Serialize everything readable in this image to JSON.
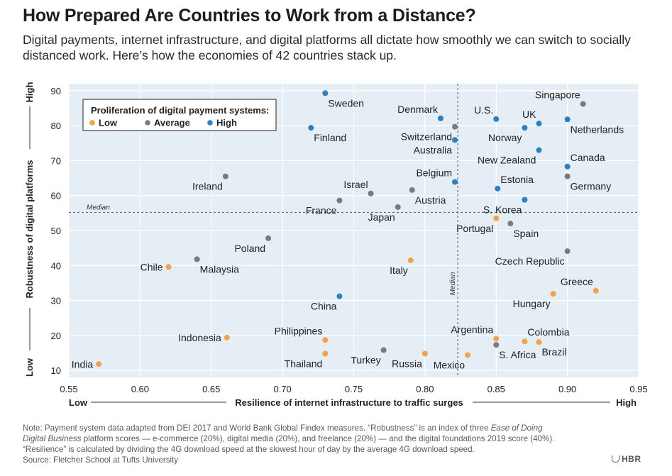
{
  "title": "How Prepared Are Countries to Work from a Distance?",
  "subtitle": "Digital payments, internet infrastructure, and digital platforms all dictate how smoothly we can switch to socially distanced work. Here’s how the economies of 42 countries stack up.",
  "note": {
    "line1_a": "Note: Payment system data adapted from DEI 2017 and World Bank Global Findex measures. “Robustness” is an index of three ",
    "line1_em": "Ease of Doing",
    "line2_em": "Digital Business",
    "line2_b": " platform scores — e-commerce (20%), digital media (20%), and freelance (20%) — and the digital foundations 2019 score (40%).",
    "line3": "“Resilience” is calculated by dividing the 4G download speed at the slowest hour of day by the average 4G download speed."
  },
  "source": "Source: Fletcher School at Tufts University",
  "brand": "HBR",
  "chart_data": {
    "type": "scatter",
    "xlabel": "Resilience of internet infrastructure to traffic surges",
    "ylabel": "Robustness of digital platforms",
    "x_low": "Low",
    "x_high": "High",
    "y_low": "Low",
    "y_high": "High",
    "xlim": [
      0.55,
      0.95
    ],
    "ylim": [
      8,
      92
    ],
    "xticks": [
      0.55,
      0.6,
      0.65,
      0.7,
      0.75,
      0.8,
      0.85,
      0.9,
      0.95
    ],
    "xtick_labels": [
      "0.55",
      "0.60",
      "0.65",
      "0.70",
      "0.75",
      "0.80",
      "0.85",
      "0.90",
      "0.95"
    ],
    "yticks": [
      10,
      20,
      30,
      40,
      50,
      60,
      70,
      80,
      90
    ],
    "ytick_labels": [
      "10",
      "20",
      "30",
      "40",
      "50",
      "60",
      "70",
      "80",
      "90"
    ],
    "grid": true,
    "median_x": 0.823,
    "median_y": 55.2,
    "median_label": "Median",
    "legend": {
      "title": "Proliferation of digital payment systems:",
      "placement": "top-left",
      "items": [
        {
          "key": "low",
          "label": "Low"
        },
        {
          "key": "average",
          "label": "Average"
        },
        {
          "key": "high",
          "label": "High"
        }
      ]
    },
    "colors": {
      "low": "#f5a04a",
      "average": "#7a7a7a",
      "high": "#2c7fc0"
    },
    "points": [
      {
        "name": "India",
        "x": 0.571,
        "y": 11.8,
        "cat": "low",
        "pos": "left"
      },
      {
        "name": "Chile",
        "x": 0.62,
        "y": 39.6,
        "cat": "low",
        "pos": "left"
      },
      {
        "name": "Indonesia",
        "x": 0.661,
        "y": 19.4,
        "cat": "low",
        "pos": "left"
      },
      {
        "name": "Philippines",
        "x": 0.73,
        "y": 18.7,
        "cat": "low",
        "pos": "above-left"
      },
      {
        "name": "Thailand",
        "x": 0.73,
        "y": 14.8,
        "cat": "low",
        "pos": "below-left"
      },
      {
        "name": "Italy",
        "x": 0.79,
        "y": 41.5,
        "cat": "low",
        "pos": "below-left"
      },
      {
        "name": "Russia",
        "x": 0.8,
        "y": 14.8,
        "cat": "low",
        "pos": "below-left"
      },
      {
        "name": "Mexico",
        "x": 0.83,
        "y": 14.4,
        "cat": "low",
        "pos": "below-left"
      },
      {
        "name": "Portugal",
        "x": 0.85,
        "y": 53.5,
        "cat": "low",
        "pos": "below-left"
      },
      {
        "name": "Argentina",
        "x": 0.85,
        "y": 19.1,
        "cat": "low",
        "pos": "above-left"
      },
      {
        "name": "Colombia",
        "x": 0.87,
        "y": 18.3,
        "cat": "low",
        "pos": "above-right"
      },
      {
        "name": "Brazil",
        "x": 0.88,
        "y": 18.1,
        "cat": "low",
        "pos": "below-right"
      },
      {
        "name": "Hungary",
        "x": 0.89,
        "y": 31.9,
        "cat": "low",
        "pos": "below-left"
      },
      {
        "name": "Greece",
        "x": 0.92,
        "y": 32.8,
        "cat": "low",
        "pos": "above-left"
      },
      {
        "name": "Ireland",
        "x": 0.66,
        "y": 65.5,
        "cat": "average",
        "pos": "below-left"
      },
      {
        "name": "Malaysia",
        "x": 0.64,
        "y": 41.8,
        "cat": "average",
        "pos": "below-right"
      },
      {
        "name": "Poland",
        "x": 0.69,
        "y": 47.8,
        "cat": "average",
        "pos": "below-left"
      },
      {
        "name": "France",
        "x": 0.74,
        "y": 58.6,
        "cat": "average",
        "pos": "below-left"
      },
      {
        "name": "Israel",
        "x": 0.762,
        "y": 60.6,
        "cat": "average",
        "pos": "above-left"
      },
      {
        "name": "Austria",
        "x": 0.791,
        "y": 61.6,
        "cat": "average",
        "pos": "below-right"
      },
      {
        "name": "Japan",
        "x": 0.781,
        "y": 56.7,
        "cat": "average",
        "pos": "below-left"
      },
      {
        "name": "Turkey",
        "x": 0.771,
        "y": 15.8,
        "cat": "average",
        "pos": "below-left"
      },
      {
        "name": "Switzerland",
        "x": 0.821,
        "y": 79.7,
        "cat": "average",
        "pos": "below-left"
      },
      {
        "name": "Spain",
        "x": 0.86,
        "y": 52.0,
        "cat": "average",
        "pos": "below-right"
      },
      {
        "name": "S. Africa",
        "x": 0.85,
        "y": 17.3,
        "cat": "average",
        "pos": "below-right"
      },
      {
        "name": "Czech Republic",
        "x": 0.9,
        "y": 44.1,
        "cat": "average",
        "pos": "below-left"
      },
      {
        "name": "Singapore",
        "x": 0.911,
        "y": 86.2,
        "cat": "average",
        "pos": "above-left"
      },
      {
        "name": "Germany",
        "x": 0.9,
        "y": 65.5,
        "cat": "average",
        "pos": "below-right"
      },
      {
        "name": "Sweden",
        "x": 0.73,
        "y": 89.3,
        "cat": "high",
        "pos": "below-right"
      },
      {
        "name": "Finland",
        "x": 0.72,
        "y": 79.4,
        "cat": "high",
        "pos": "below-right"
      },
      {
        "name": "Denmark",
        "x": 0.811,
        "y": 82.1,
        "cat": "high",
        "pos": "above-left"
      },
      {
        "name": "Australia",
        "x": 0.821,
        "y": 75.9,
        "cat": "high",
        "pos": "below-left"
      },
      {
        "name": "Belgium",
        "x": 0.821,
        "y": 63.9,
        "cat": "high",
        "pos": "above-left"
      },
      {
        "name": "U.S.",
        "x": 0.85,
        "y": 81.9,
        "cat": "high",
        "pos": "above-left"
      },
      {
        "name": "UK",
        "x": 0.88,
        "y": 80.6,
        "cat": "high",
        "pos": "above-left"
      },
      {
        "name": "Norway",
        "x": 0.87,
        "y": 79.4,
        "cat": "high",
        "pos": "below-left"
      },
      {
        "name": "Netherlands",
        "x": 0.9,
        "y": 81.8,
        "cat": "high",
        "pos": "below-right"
      },
      {
        "name": "New Zealand",
        "x": 0.88,
        "y": 73.0,
        "cat": "high",
        "pos": "below-left"
      },
      {
        "name": "Canada",
        "x": 0.9,
        "y": 68.3,
        "cat": "high",
        "pos": "above-right"
      },
      {
        "name": "Estonia",
        "x": 0.851,
        "y": 62.0,
        "cat": "high",
        "pos": "above-right"
      },
      {
        "name": "S. Korea",
        "x": 0.87,
        "y": 58.8,
        "cat": "high",
        "pos": "below-left"
      },
      {
        "name": "China",
        "x": 0.74,
        "y": 31.2,
        "cat": "high",
        "pos": "below-left"
      }
    ]
  }
}
